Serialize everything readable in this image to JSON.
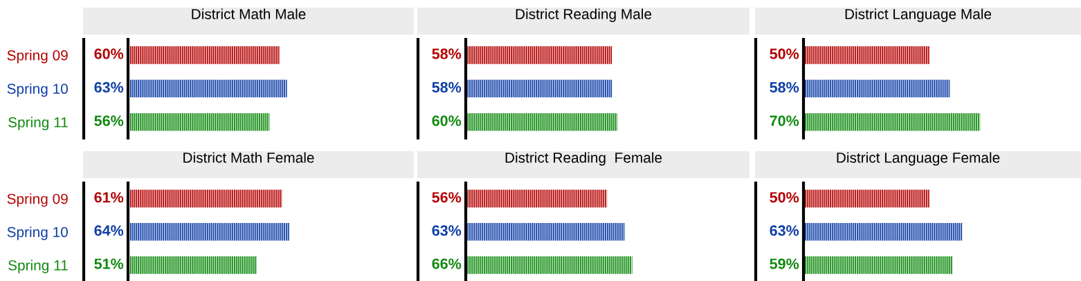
{
  "chart_data": [
    {
      "type": "bar",
      "orientation": "horizontal",
      "title": "District Math Male",
      "categories": [
        "Spring 09",
        "Spring 10",
        "Spring 11"
      ],
      "values": [
        60,
        63,
        56
      ],
      "colors": [
        "#b40000",
        "#0f3ea6",
        "#0f8a0f"
      ],
      "value_labels": [
        "60%",
        "63%",
        "56%"
      ],
      "tick_labels": "y"
    },
    {
      "type": "bar",
      "orientation": "horizontal",
      "title": "District Reading Male",
      "categories": [
        "Spring 09",
        "Spring 10",
        "Spring 11"
      ],
      "values": [
        58,
        58,
        60
      ],
      "colors": [
        "#b40000",
        "#0f3ea6",
        "#0f8a0f"
      ],
      "value_labels": [
        "58%",
        "58%",
        "60%"
      ],
      "tick_labels": false
    },
    {
      "type": "bar",
      "orientation": "horizontal",
      "title": "District Language Male",
      "categories": [
        "Spring 09",
        "Spring 10",
        "Spring 11"
      ],
      "values": [
        50,
        58,
        70
      ],
      "colors": [
        "#b40000",
        "#0f3ea6",
        "#0f8a0f"
      ],
      "value_labels": [
        "50%",
        "58%",
        "70%"
      ],
      "tick_labels": false
    },
    {
      "type": "bar",
      "orientation": "horizontal",
      "title": "District Math Female",
      "categories": [
        "Spring 09",
        "Spring 10",
        "Spring 11"
      ],
      "values": [
        61,
        64,
        51
      ],
      "colors": [
        "#b40000",
        "#0f3ea6",
        "#0f8a0f"
      ],
      "value_labels": [
        "61%",
        "64%",
        "51%"
      ],
      "tick_labels": "y"
    },
    {
      "type": "bar",
      "orientation": "horizontal",
      "title": "District Reading  Female",
      "categories": [
        "Spring 09",
        "Spring 10",
        "Spring 11"
      ],
      "values": [
        56,
        63,
        66
      ],
      "colors": [
        "#b40000",
        "#0f3ea6",
        "#0f8a0f"
      ],
      "value_labels": [
        "56%",
        "63%",
        "66%"
      ],
      "tick_labels": false
    },
    {
      "type": "bar",
      "orientation": "horizontal",
      "title": "District Language Female",
      "categories": [
        "Spring 09",
        "Spring 10",
        "Spring 11"
      ],
      "values": [
        50,
        63,
        59
      ],
      "colors": [
        "#b40000",
        "#0f3ea6",
        "#0f8a0f"
      ],
      "value_labels": [
        "50%",
        "63%",
        "59%"
      ],
      "tick_labels": false
    }
  ]
}
